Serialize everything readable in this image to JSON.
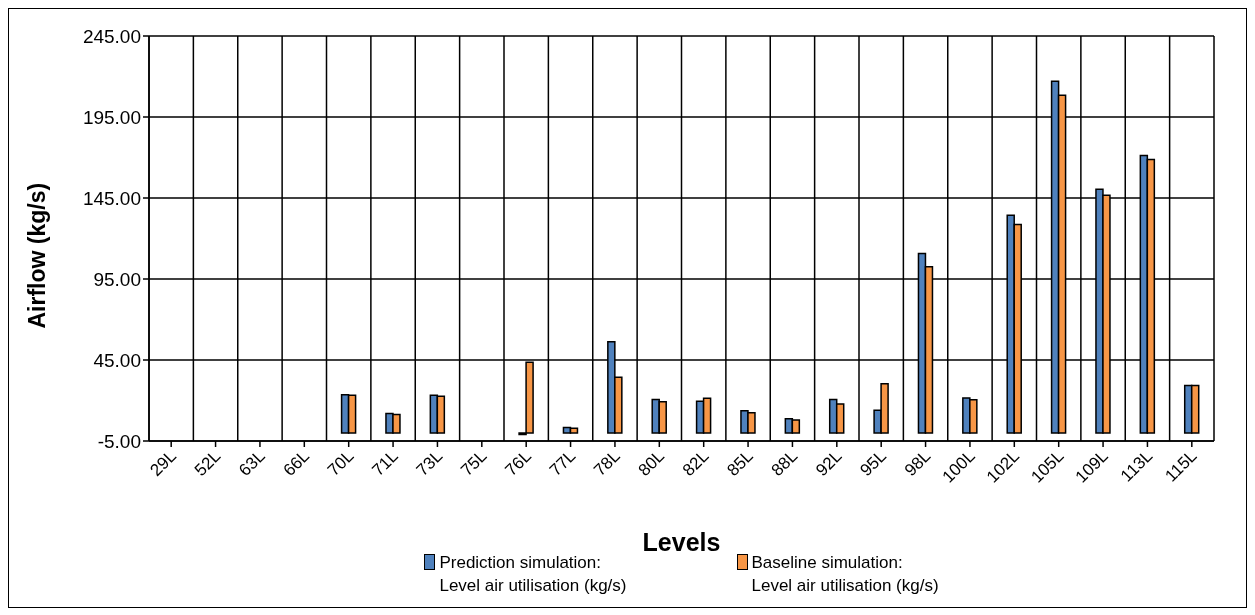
{
  "chart_data": {
    "type": "bar",
    "xlabel": "Levels",
    "ylabel": "Airflow (kg/s)",
    "categories": [
      "29L",
      "52L",
      "63L",
      "66L",
      "70L",
      "71L",
      "73L",
      "75L",
      "76L",
      "77L",
      "78L",
      "80L",
      "82L",
      "85L",
      "88L",
      "92L",
      "95L",
      "98L",
      "100L",
      "102L",
      "105L",
      "109L",
      "113L",
      "115L"
    ],
    "series": [
      {
        "name": "Prediction simulation:\nLevel air utilisation (kg/s)",
        "color": "#4f81bd",
        "values": [
          0,
          0,
          0,
          0,
          23.6,
          11.9,
          23.3,
          0,
          -1,
          3.3,
          56.2,
          20.6,
          19.5,
          13.6,
          8.8,
          20.6,
          14.0,
          110.7,
          21.6,
          134.4,
          217.1,
          150.4,
          171.2,
          29.2
        ]
      },
      {
        "name": "Baseline simulation:\nLevel air utilisation (kg/s)",
        "color": "#f79646",
        "values": [
          0,
          0,
          0,
          0,
          23.3,
          11.3,
          22.6,
          0,
          43.6,
          2.9,
          34.4,
          19.3,
          21.4,
          12.5,
          8.0,
          17.9,
          30.4,
          102.5,
          20.4,
          128.6,
          208.5,
          146.7,
          168.7,
          29.2
        ]
      }
    ],
    "ylim": [
      -5,
      245
    ],
    "yticks": [
      {
        "value": -5,
        "label": "-5.00"
      },
      {
        "value": 45,
        "label": "45.00"
      },
      {
        "value": 95,
        "label": "95.00"
      },
      {
        "value": 145,
        "label": "145.00"
      },
      {
        "value": 195,
        "label": "195.00"
      },
      {
        "value": 245,
        "label": "245.00"
      }
    ],
    "grid": true,
    "legend": "bottom"
  }
}
